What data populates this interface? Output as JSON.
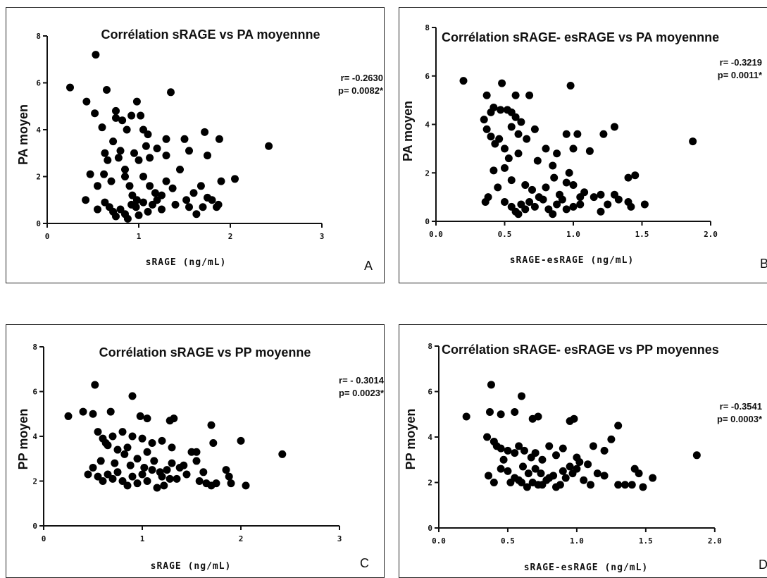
{
  "chart_data": [
    {
      "type": "scatter",
      "panel_letter": "A",
      "title": "Corrélation sRAGE  vs PA moyennne",
      "xlabel": "sRAGE (ng/mL)",
      "ylabel": "PA moyen",
      "xlim": [
        0,
        3
      ],
      "ylim": [
        0,
        8
      ],
      "xticks": [
        0,
        1,
        2,
        3
      ],
      "yticks": [
        0,
        2,
        4,
        6,
        8
      ],
      "xtick_labels": [
        "0",
        "1",
        "2",
        "3"
      ],
      "ytick_labels": [
        "0",
        "2",
        "4",
        "6",
        "8"
      ],
      "stats": [
        "r= -0.2630",
        "p= 0.0082*"
      ],
      "points": [
        [
          0.25,
          5.8
        ],
        [
          0.43,
          5.2
        ],
        [
          0.53,
          7.2
        ],
        [
          0.52,
          4.7
        ],
        [
          0.6,
          4.1
        ],
        [
          0.63,
          3.0
        ],
        [
          0.66,
          2.7
        ],
        [
          0.72,
          3.5
        ],
        [
          0.75,
          4.5
        ],
        [
          0.82,
          4.4
        ],
        [
          0.87,
          4.0
        ],
        [
          0.92,
          4.6
        ],
        [
          0.98,
          5.2
        ],
        [
          1.02,
          4.6
        ],
        [
          1.05,
          4.0
        ],
        [
          1.1,
          3.8
        ],
        [
          1.2,
          3.2
        ],
        [
          1.3,
          3.6
        ],
        [
          1.35,
          5.6
        ],
        [
          1.5,
          3.6
        ],
        [
          1.55,
          3.1
        ],
        [
          1.72,
          3.9
        ],
        [
          1.75,
          2.9
        ],
        [
          1.88,
          3.6
        ],
        [
          2.42,
          3.3
        ],
        [
          0.47,
          2.1
        ],
        [
          0.55,
          1.6
        ],
        [
          0.62,
          2.1
        ],
        [
          0.7,
          1.8
        ],
        [
          0.78,
          2.8
        ],
        [
          0.85,
          2.3
        ],
        [
          0.95,
          3.0
        ],
        [
          1.0,
          2.7
        ],
        [
          1.05,
          2.0
        ],
        [
          1.12,
          1.6
        ],
        [
          1.18,
          1.3
        ],
        [
          1.25,
          1.2
        ],
        [
          1.3,
          1.8
        ],
        [
          1.37,
          1.5
        ],
        [
          1.45,
          2.3
        ],
        [
          1.6,
          1.3
        ],
        [
          1.7,
          0.7
        ],
        [
          1.8,
          1.0
        ],
        [
          1.87,
          0.8
        ],
        [
          1.9,
          1.8
        ],
        [
          2.05,
          1.9
        ],
        [
          0.42,
          1.0
        ],
        [
          0.55,
          0.6
        ],
        [
          0.63,
          0.9
        ],
        [
          0.68,
          0.7
        ],
        [
          0.72,
          0.5
        ],
        [
          0.75,
          0.3
        ],
        [
          0.8,
          0.6
        ],
        [
          0.85,
          0.4
        ],
        [
          0.88,
          0.2
        ],
        [
          0.92,
          0.8
        ],
        [
          0.97,
          0.7
        ],
        [
          1.0,
          0.35
        ],
        [
          1.05,
          0.9
        ],
        [
          1.1,
          0.5
        ],
        [
          1.15,
          0.8
        ],
        [
          1.2,
          1.0
        ],
        [
          1.25,
          0.6
        ],
        [
          1.4,
          0.8
        ],
        [
          1.55,
          0.7
        ],
        [
          1.63,
          0.4
        ],
        [
          1.75,
          1.1
        ],
        [
          1.85,
          0.7
        ],
        [
          0.65,
          5.7
        ],
        [
          0.75,
          4.8
        ],
        [
          0.8,
          3.1
        ],
        [
          0.85,
          2.0
        ],
        [
          0.9,
          1.6
        ],
        [
          0.93,
          1.2
        ],
        [
          0.98,
          1.0
        ],
        [
          1.08,
          3.3
        ],
        [
          1.12,
          2.8
        ],
        [
          1.3,
          2.9
        ],
        [
          1.52,
          1.0
        ],
        [
          1.68,
          1.6
        ]
      ]
    },
    {
      "type": "scatter",
      "panel_letter": "B",
      "title": "Corrélation sRAGE- esRAGE  vs PA moyennne",
      "xlabel": "sRAGE-esRAGE (ng/mL)",
      "ylabel": "PA moyen",
      "xlim": [
        0,
        2.2
      ],
      "ylim": [
        0,
        8
      ],
      "xticks": [
        0,
        0.5,
        1.0,
        1.5,
        2.0
      ],
      "yticks": [
        0,
        2,
        4,
        6,
        8
      ],
      "xtick_labels": [
        "0.0",
        "0.5",
        "1.0",
        "1.5",
        "2.0"
      ],
      "ytick_labels": [
        "0",
        "2",
        "4",
        "6",
        "8"
      ],
      "stats": [
        "r= -0.3219",
        "p= 0.0011*"
      ],
      "points": [
        [
          0.2,
          5.8
        ],
        [
          0.37,
          5.2
        ],
        [
          0.48,
          5.7
        ],
        [
          0.58,
          5.2
        ],
        [
          0.68,
          5.2
        ],
        [
          0.98,
          5.6
        ],
        [
          0.35,
          4.2
        ],
        [
          0.4,
          4.5
        ],
        [
          0.42,
          4.7
        ],
        [
          0.47,
          4.6
        ],
        [
          0.52,
          4.6
        ],
        [
          0.55,
          4.5
        ],
        [
          0.58,
          4.3
        ],
        [
          0.62,
          4.1
        ],
        [
          0.37,
          3.8
        ],
        [
          0.4,
          3.5
        ],
        [
          0.43,
          3.2
        ],
        [
          0.5,
          3.0
        ],
        [
          0.55,
          3.9
        ],
        [
          0.6,
          3.6
        ],
        [
          0.72,
          3.8
        ],
        [
          0.8,
          3.0
        ],
        [
          0.88,
          2.8
        ],
        [
          0.95,
          3.6
        ],
        [
          1.0,
          3.0
        ],
        [
          1.03,
          3.6
        ],
        [
          1.12,
          2.9
        ],
        [
          1.22,
          3.6
        ],
        [
          1.3,
          3.9
        ],
        [
          1.87,
          3.3
        ],
        [
          0.38,
          1.0
        ],
        [
          0.42,
          2.1
        ],
        [
          0.45,
          1.4
        ],
        [
          0.5,
          2.2
        ],
        [
          0.55,
          1.7
        ],
        [
          0.6,
          2.8
        ],
        [
          0.65,
          1.5
        ],
        [
          0.7,
          1.3
        ],
        [
          0.75,
          1.0
        ],
        [
          0.8,
          1.4
        ],
        [
          0.85,
          2.3
        ],
        [
          0.9,
          1.1
        ],
        [
          0.95,
          1.6
        ],
        [
          1.0,
          1.5
        ],
        [
          1.05,
          1.0
        ],
        [
          1.15,
          1.0
        ],
        [
          1.2,
          1.1
        ],
        [
          1.3,
          1.1
        ],
        [
          1.4,
          1.8
        ],
        [
          1.45,
          1.9
        ],
        [
          0.5,
          0.8
        ],
        [
          0.55,
          0.6
        ],
        [
          0.58,
          0.4
        ],
        [
          0.6,
          0.3
        ],
        [
          0.62,
          0.7
        ],
        [
          0.65,
          0.5
        ],
        [
          0.68,
          0.8
        ],
        [
          0.72,
          0.6
        ],
        [
          0.78,
          0.9
        ],
        [
          0.82,
          0.5
        ],
        [
          0.85,
          0.3
        ],
        [
          0.88,
          0.7
        ],
        [
          0.92,
          0.9
        ],
        [
          0.95,
          0.5
        ],
        [
          1.0,
          0.6
        ],
        [
          1.05,
          0.7
        ],
        [
          1.2,
          0.4
        ],
        [
          1.25,
          0.7
        ],
        [
          1.4,
          0.8
        ],
        [
          1.52,
          0.7
        ],
        [
          0.36,
          0.8
        ],
        [
          0.46,
          3.4
        ],
        [
          0.53,
          2.6
        ],
        [
          0.66,
          3.4
        ],
        [
          0.74,
          2.5
        ],
        [
          0.86,
          1.8
        ],
        [
          0.97,
          2.0
        ],
        [
          1.08,
          1.2
        ],
        [
          1.33,
          0.9
        ],
        [
          1.42,
          0.6
        ]
      ]
    },
    {
      "type": "scatter",
      "panel_letter": "C",
      "title": "Corrélation sRAGE  vs PP moyenne",
      "xlabel": "sRAGE (ng/mL)",
      "ylabel": "PP moyen",
      "xlim": [
        0,
        3
      ],
      "ylim": [
        0,
        8
      ],
      "xticks": [
        0,
        1,
        2,
        3
      ],
      "yticks": [
        0,
        2,
        4,
        6,
        8
      ],
      "xtick_labels": [
        "0",
        "1",
        "2",
        "3"
      ],
      "ytick_labels": [
        "0",
        "2",
        "4",
        "6",
        "8"
      ],
      "stats": [
        "r= - 0.3014",
        "p= 0.0023*"
      ],
      "points": [
        [
          0.25,
          4.9
        ],
        [
          0.52,
          6.3
        ],
        [
          0.9,
          5.8
        ],
        [
          0.4,
          5.1
        ],
        [
          0.5,
          5.0
        ],
        [
          0.68,
          5.1
        ],
        [
          0.98,
          4.9
        ],
        [
          1.05,
          4.8
        ],
        [
          1.28,
          4.7
        ],
        [
          1.32,
          4.8
        ],
        [
          1.7,
          4.5
        ],
        [
          2.0,
          3.8
        ],
        [
          2.42,
          3.2
        ],
        [
          0.55,
          4.2
        ],
        [
          0.6,
          3.9
        ],
        [
          0.63,
          3.7
        ],
        [
          0.65,
          3.6
        ],
        [
          0.7,
          4.0
        ],
        [
          0.75,
          3.4
        ],
        [
          0.8,
          4.2
        ],
        [
          0.85,
          3.5
        ],
        [
          0.9,
          4.0
        ],
        [
          1.0,
          3.9
        ],
        [
          1.05,
          3.3
        ],
        [
          1.1,
          3.7
        ],
        [
          1.2,
          3.8
        ],
        [
          1.3,
          3.5
        ],
        [
          1.5,
          3.3
        ],
        [
          1.55,
          3.3
        ],
        [
          1.72,
          3.7
        ],
        [
          0.45,
          2.3
        ],
        [
          0.5,
          2.6
        ],
        [
          0.55,
          2.2
        ],
        [
          0.6,
          2.0
        ],
        [
          0.65,
          2.3
        ],
        [
          0.7,
          2.1
        ],
        [
          0.75,
          2.4
        ],
        [
          0.8,
          2.0
        ],
        [
          0.85,
          1.8
        ],
        [
          0.9,
          2.2
        ],
        [
          0.95,
          1.9
        ],
        [
          1.0,
          2.3
        ],
        [
          1.05,
          2.0
        ],
        [
          1.1,
          2.5
        ],
        [
          1.15,
          1.7
        ],
        [
          1.2,
          2.2
        ],
        [
          1.25,
          2.5
        ],
        [
          1.3,
          2.8
        ],
        [
          1.35,
          2.1
        ],
        [
          1.45,
          2.3
        ],
        [
          1.55,
          2.9
        ],
        [
          1.65,
          1.9
        ],
        [
          1.75,
          1.9
        ],
        [
          1.85,
          2.5
        ],
        [
          1.9,
          1.9
        ],
        [
          2.05,
          1.8
        ],
        [
          0.82,
          3.2
        ],
        [
          0.88,
          2.7
        ],
        [
          0.95,
          3.0
        ],
        [
          1.02,
          2.6
        ],
        [
          1.18,
          2.4
        ],
        [
          1.28,
          2.1
        ],
        [
          1.38,
          2.6
        ],
        [
          1.58,
          2.0
        ],
        [
          1.7,
          1.8
        ],
        [
          1.88,
          2.2
        ],
        [
          0.58,
          2.9
        ],
        [
          0.72,
          2.8
        ],
        [
          1.12,
          2.9
        ],
        [
          1.22,
          1.8
        ],
        [
          1.42,
          2.7
        ],
        [
          1.62,
          2.4
        ]
      ]
    },
    {
      "type": "scatter",
      "panel_letter": "D",
      "title": "Corrélation sRAGE- esRAGE  vs PP moyennes",
      "xlabel": "sRAGE-esRAGE (ng/mL)",
      "ylabel": "PP moyen",
      "xlim": [
        0,
        2.2
      ],
      "ylim": [
        0,
        8
      ],
      "xticks": [
        0,
        0.5,
        1.0,
        1.5,
        2.0
      ],
      "yticks": [
        0,
        2,
        4,
        6,
        8
      ],
      "xtick_labels": [
        "0.0",
        "0.5",
        "1.0",
        "1.5",
        "2.0"
      ],
      "ytick_labels": [
        "0",
        "2",
        "4",
        "6",
        "8"
      ],
      "stats": [
        "r= -0.3541",
        "p= 0.0003*"
      ],
      "points": [
        [
          0.2,
          4.9
        ],
        [
          0.38,
          6.3
        ],
        [
          0.6,
          5.8
        ],
        [
          0.37,
          5.1
        ],
        [
          0.45,
          5.0
        ],
        [
          0.55,
          5.1
        ],
        [
          0.68,
          4.8
        ],
        [
          0.72,
          4.9
        ],
        [
          0.95,
          4.7
        ],
        [
          0.98,
          4.8
        ],
        [
          1.3,
          4.5
        ],
        [
          1.87,
          3.2
        ],
        [
          0.35,
          4.0
        ],
        [
          0.4,
          3.8
        ],
        [
          0.42,
          3.6
        ],
        [
          0.45,
          3.5
        ],
        [
          0.5,
          3.4
        ],
        [
          0.55,
          3.3
        ],
        [
          0.58,
          3.6
        ],
        [
          0.62,
          3.4
        ],
        [
          0.7,
          3.3
        ],
        [
          0.75,
          3.0
        ],
        [
          0.8,
          3.6
        ],
        [
          0.85,
          3.2
        ],
        [
          0.9,
          3.5
        ],
        [
          1.0,
          3.1
        ],
        [
          1.12,
          3.6
        ],
        [
          1.2,
          3.4
        ],
        [
          1.25,
          3.9
        ],
        [
          0.36,
          2.3
        ],
        [
          0.4,
          2.0
        ],
        [
          0.45,
          2.6
        ],
        [
          0.5,
          2.5
        ],
        [
          0.55,
          2.2
        ],
        [
          0.6,
          2.0
        ],
        [
          0.65,
          2.4
        ],
        [
          0.7,
          2.6
        ],
        [
          0.75,
          1.9
        ],
        [
          0.8,
          2.2
        ],
        [
          0.85,
          1.8
        ],
        [
          0.9,
          2.5
        ],
        [
          0.95,
          2.7
        ],
        [
          1.0,
          2.6
        ],
        [
          1.05,
          2.1
        ],
        [
          1.1,
          1.9
        ],
        [
          1.2,
          2.3
        ],
        [
          1.3,
          1.9
        ],
        [
          1.4,
          1.9
        ],
        [
          1.45,
          2.4
        ],
        [
          1.48,
          1.8
        ],
        [
          1.55,
          2.2
        ],
        [
          0.58,
          2.1
        ],
        [
          0.64,
          1.8
        ],
        [
          0.68,
          2.0
        ],
        [
          0.72,
          1.9
        ],
        [
          0.78,
          2.1
        ],
        [
          0.83,
          2.3
        ],
        [
          0.88,
          1.9
        ],
        [
          0.92,
          2.2
        ],
        [
          1.02,
          2.9
        ],
        [
          1.15,
          2.4
        ],
        [
          1.35,
          1.9
        ],
        [
          1.42,
          2.6
        ],
        [
          0.47,
          3.0
        ],
        [
          0.52,
          2.0
        ],
        [
          0.61,
          2.7
        ],
        [
          0.67,
          3.1
        ],
        [
          0.74,
          2.4
        ],
        [
          0.97,
          2.4
        ],
        [
          1.08,
          2.8
        ]
      ]
    }
  ]
}
